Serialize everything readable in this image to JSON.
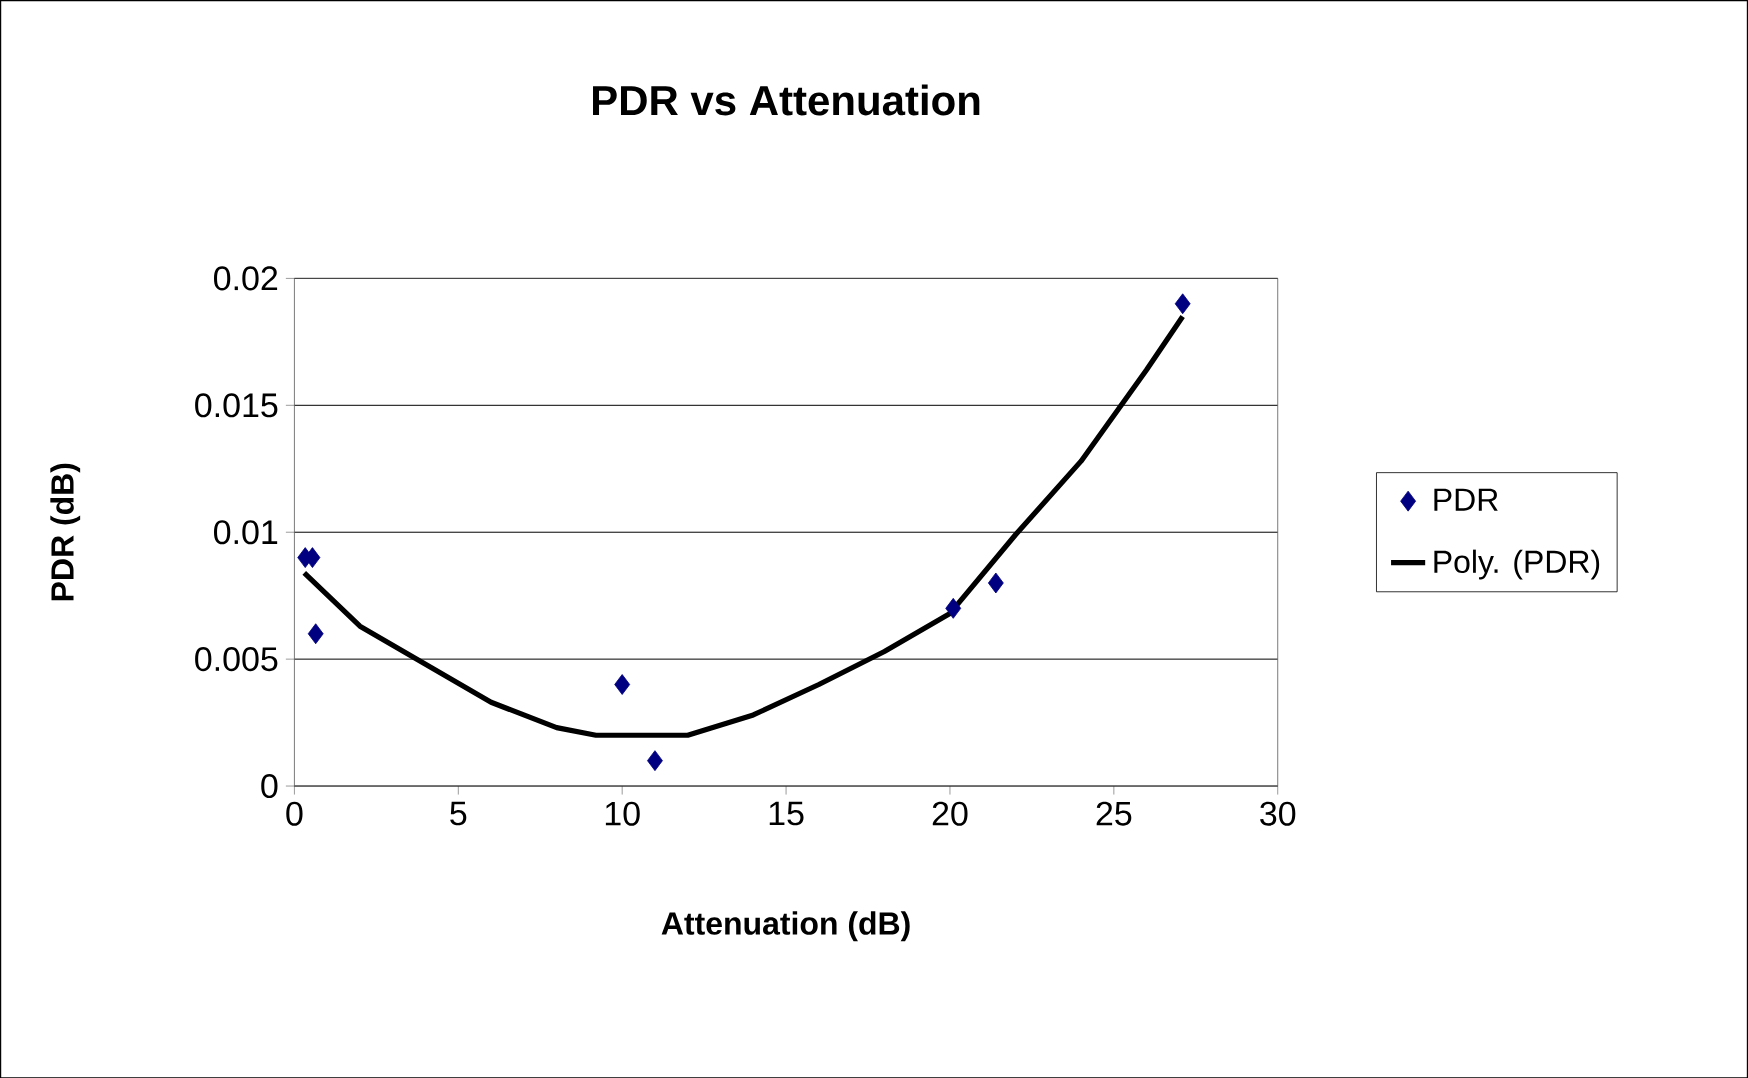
{
  "chart_data": {
    "type": "scatter",
    "title": "PDR vs Attenuation",
    "xlabel": "Attenuation (dB)",
    "ylabel": "PDR  (dB)",
    "xlim": [
      0,
      30
    ],
    "xticks": [
      0,
      5,
      10,
      15,
      20,
      25,
      30
    ],
    "ylim": [
      0,
      0.02
    ],
    "yticks": [
      0,
      0.005,
      0.01,
      0.015,
      0.02
    ],
    "grid": "y",
    "legend": "right",
    "series": [
      {
        "name": "PDR",
        "marker": "diamond",
        "color": "#000080",
        "x": [
          0.33,
          0.55,
          0.65,
          10,
          11,
          20.1,
          21.4,
          27.1
        ],
        "values": [
          0.009,
          0.009,
          0.006,
          0.004,
          0.001,
          0.007,
          0.008,
          0.019
        ]
      },
      {
        "name": "Poly. (PDR)",
        "type": "line",
        "color": "#000000",
        "x": [
          0.3,
          2,
          4,
          6,
          8,
          9.2,
          12,
          14,
          16,
          18,
          20,
          22,
          24,
          26,
          27.1
        ],
        "values": [
          0.0084,
          0.0063,
          0.0048,
          0.0033,
          0.0023,
          0.002,
          0.002,
          0.0028,
          0.004,
          0.0053,
          0.0068,
          0.0099,
          0.0128,
          0.0164,
          0.0185
        ]
      }
    ]
  }
}
